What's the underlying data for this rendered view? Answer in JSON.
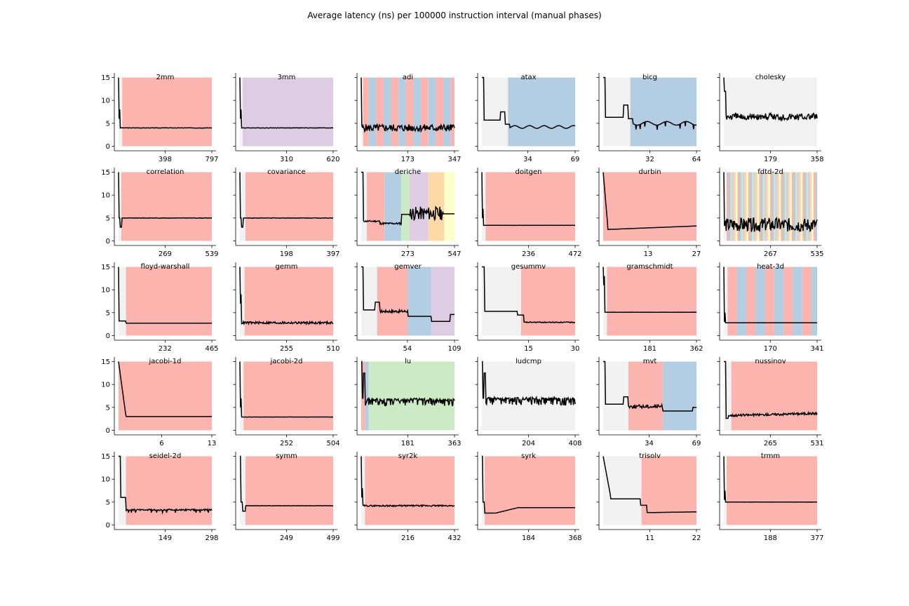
{
  "figure": {
    "title": "Average latency (ns) per 100000 instruction interval (manual phases)"
  },
  "colors": {
    "p0": "#f2f2f2",
    "p1": "#fbb4ae",
    "p2": "#b3cde3",
    "p3": "#ccebc5",
    "p4": "#decbe4",
    "p5": "#fed9a6",
    "p6": "#ffffcc",
    "line": "#000000"
  },
  "chart_data": [
    {
      "type": "line",
      "title": "2mm",
      "xticks": [
        "398",
        "797"
      ],
      "xmax": 797,
      "ylim": [
        0,
        15
      ],
      "yticks": [
        "0",
        "5",
        "10",
        "15"
      ],
      "phases": [
        [
          0,
          0.04,
          0
        ],
        [
          0.04,
          1,
          1
        ]
      ],
      "series": [
        {
          "shape": "spikeflat",
          "start": 15,
          "dip": 6,
          "flat": 4.0,
          "noise": 0.05
        }
      ]
    },
    {
      "type": "line",
      "title": "3mm",
      "xticks": [
        "310",
        "620"
      ],
      "xmax": 620,
      "ylim": [
        0,
        15
      ],
      "phases": [
        [
          0,
          0.03,
          0
        ],
        [
          0.03,
          1,
          4
        ]
      ],
      "series": [
        {
          "shape": "spikeflat",
          "start": 15,
          "dip": 6,
          "flat": 4.0,
          "noise": 0.05
        }
      ]
    },
    {
      "type": "line",
      "title": "adi",
      "xticks": [
        "173",
        "347"
      ],
      "xmax": 347,
      "ylim": [
        0,
        15
      ],
      "phases": [
        [
          0,
          0.02,
          0
        ],
        [
          0.02,
          0.08,
          1
        ],
        [
          0.08,
          0.16,
          2
        ],
        [
          0.16,
          0.24,
          1
        ],
        [
          0.24,
          0.32,
          2
        ],
        [
          0.32,
          0.4,
          1
        ],
        [
          0.4,
          0.48,
          2
        ],
        [
          0.48,
          0.56,
          1
        ],
        [
          0.56,
          0.64,
          2
        ],
        [
          0.64,
          0.72,
          1
        ],
        [
          0.72,
          0.8,
          2
        ],
        [
          0.8,
          0.88,
          1
        ],
        [
          0.88,
          0.96,
          2
        ],
        [
          0.96,
          1,
          1
        ]
      ],
      "series": [
        {
          "shape": "noisy",
          "start": 15,
          "flat": 4.0,
          "noise": 0.8
        }
      ]
    },
    {
      "type": "line",
      "title": "atax",
      "xticks": [
        "34",
        "69"
      ],
      "xmax": 69,
      "ylim": [
        0,
        15
      ],
      "phases": [
        [
          0,
          0.28,
          0
        ],
        [
          0.28,
          1,
          2
        ]
      ],
      "series": [
        {
          "shape": "atax",
          "start": 15,
          "flat": 4.0
        }
      ]
    },
    {
      "type": "line",
      "title": "bicg",
      "xticks": [
        "32",
        "64"
      ],
      "xmax": 64,
      "ylim": [
        0,
        15
      ],
      "phases": [
        [
          0,
          0.29,
          0
        ],
        [
          0.29,
          1,
          2
        ]
      ],
      "series": [
        {
          "shape": "bicg",
          "start": 15,
          "flat": 5.0
        }
      ]
    },
    {
      "type": "line",
      "title": "cholesky",
      "xticks": [
        "179",
        "358"
      ],
      "xmax": 358,
      "ylim": [
        0,
        15
      ],
      "phases": [
        [
          0,
          1,
          0
        ]
      ],
      "series": [
        {
          "shape": "hairy",
          "start": 15,
          "flat": 7.2,
          "noise": 1.5
        }
      ]
    },
    {
      "type": "line",
      "title": "correlation",
      "xticks": [
        "269",
        "539"
      ],
      "xmax": 539,
      "ylim": [
        0,
        15
      ],
      "phases": [
        [
          0,
          0.03,
          0
        ],
        [
          0.03,
          1,
          1
        ]
      ],
      "series": [
        {
          "shape": "dipflat",
          "start": 15,
          "dip": 3,
          "flat": 5.0
        }
      ]
    },
    {
      "type": "line",
      "title": "covariance",
      "xticks": [
        "198",
        "397"
      ],
      "xmax": 397,
      "ylim": [
        0,
        15
      ],
      "phases": [
        [
          0,
          0.06,
          0
        ],
        [
          0.06,
          1,
          1
        ]
      ],
      "series": [
        {
          "shape": "dipflat",
          "start": 15,
          "dip": 3,
          "flat": 5.0
        }
      ]
    },
    {
      "type": "line",
      "title": "deriche",
      "xticks": [
        "273",
        "547"
      ],
      "xmax": 547,
      "ylim": [
        0,
        15
      ],
      "phases": [
        [
          0,
          0.06,
          0
        ],
        [
          0.06,
          0.25,
          1
        ],
        [
          0.25,
          0.43,
          2
        ],
        [
          0.43,
          0.52,
          3
        ],
        [
          0.52,
          0.72,
          4
        ],
        [
          0.72,
          0.89,
          5
        ],
        [
          0.89,
          1,
          6
        ]
      ],
      "series": [
        {
          "shape": "deriche",
          "start": 15,
          "flat": 4.0
        }
      ]
    },
    {
      "type": "line",
      "title": "doitgen",
      "xticks": [
        "236",
        "472"
      ],
      "xmax": 472,
      "ylim": [
        0,
        15
      ],
      "phases": [
        [
          0,
          0.04,
          0
        ],
        [
          0.04,
          1,
          1
        ]
      ],
      "series": [
        {
          "shape": "spikeflat",
          "start": 15,
          "dip": 5,
          "flat": 3.4,
          "noise": 0.02
        }
      ]
    },
    {
      "type": "line",
      "title": "durbin",
      "xticks": [
        "13",
        "27"
      ],
      "xmax": 27,
      "ylim": [
        0,
        15
      ],
      "phases": [
        [
          0,
          1,
          1
        ]
      ],
      "series": [
        {
          "shape": "durbin",
          "start": 15,
          "flat": 2.5
        }
      ]
    },
    {
      "type": "line",
      "title": "fdtd-2d",
      "xticks": [
        "267",
        "535"
      ],
      "xmax": 535,
      "ylim": [
        0,
        15
      ],
      "phases": [
        [
          0,
          0.03,
          0
        ],
        [
          0.03,
          1,
          2
        ]
      ],
      "stripes": true,
      "series": [
        {
          "shape": "noisy",
          "start": 15,
          "flat": 3.5,
          "noise": 1.5
        }
      ]
    },
    {
      "type": "line",
      "title": "floyd-warshall",
      "xticks": [
        "232",
        "465"
      ],
      "xmax": 465,
      "ylim": [
        0,
        15
      ],
      "phases": [
        [
          0,
          0.08,
          0
        ],
        [
          0.08,
          1,
          1
        ]
      ],
      "series": [
        {
          "shape": "floyd",
          "start": 15,
          "flat": 2.7
        }
      ]
    },
    {
      "type": "line",
      "title": "gemm",
      "xticks": [
        "255",
        "510"
      ],
      "xmax": 510,
      "ylim": [
        0,
        15
      ],
      "phases": [
        [
          0,
          0.05,
          0
        ],
        [
          0.05,
          1,
          1
        ]
      ],
      "series": [
        {
          "shape": "spikeflat",
          "start": 15,
          "dip": 7,
          "flat": 2.8,
          "noise": 0.25
        }
      ]
    },
    {
      "type": "line",
      "title": "gemver",
      "xticks": [
        "54",
        "109"
      ],
      "xmax": 109,
      "ylim": [
        0,
        15
      ],
      "phases": [
        [
          0,
          0.17,
          0
        ],
        [
          0.17,
          0.5,
          1
        ],
        [
          0.5,
          0.75,
          2
        ],
        [
          0.75,
          1,
          4
        ]
      ],
      "series": [
        {
          "shape": "gemver",
          "start": 15,
          "flat": 5.5
        }
      ]
    },
    {
      "type": "line",
      "title": "gesummv",
      "xticks": [
        "15",
        "30"
      ],
      "xmax": 30,
      "ylim": [
        0,
        15
      ],
      "phases": [
        [
          0,
          0.42,
          0
        ],
        [
          0.42,
          1,
          1
        ]
      ],
      "series": [
        {
          "shape": "gesummv",
          "start": 15,
          "flat": 5.3
        }
      ]
    },
    {
      "type": "line",
      "title": "gramschmidt",
      "xticks": [
        "181",
        "362"
      ],
      "xmax": 362,
      "ylim": [
        0,
        15
      ],
      "phases": [
        [
          0,
          0.04,
          0
        ],
        [
          0.04,
          1,
          1
        ]
      ],
      "series": [
        {
          "shape": "spikeflat",
          "start": 15,
          "dip": 11,
          "flat": 5.1,
          "noise": 0.02
        }
      ]
    },
    {
      "type": "line",
      "title": "heat-3d",
      "xticks": [
        "170",
        "341"
      ],
      "xmax": 341,
      "ylim": [
        0,
        15
      ],
      "phases": [
        [
          0,
          0.04,
          0
        ],
        [
          0.04,
          0.14,
          1
        ],
        [
          0.14,
          0.24,
          2
        ],
        [
          0.24,
          0.34,
          1
        ],
        [
          0.34,
          0.44,
          2
        ],
        [
          0.44,
          0.54,
          1
        ],
        [
          0.54,
          0.64,
          2
        ],
        [
          0.64,
          0.74,
          1
        ],
        [
          0.74,
          0.84,
          2
        ],
        [
          0.84,
          0.94,
          1
        ],
        [
          0.94,
          1,
          2
        ]
      ],
      "series": [
        {
          "shape": "spikeflat",
          "start": 15,
          "dip": 3,
          "flat": 2.8,
          "noise": 0.02
        }
      ]
    },
    {
      "type": "line",
      "title": "jacobi-1d",
      "xticks": [
        "6",
        "13"
      ],
      "xmax": 13,
      "ylim": [
        0,
        15
      ],
      "phases": [
        [
          0,
          1,
          1
        ]
      ],
      "series": [
        {
          "shape": "jacobi1d",
          "start": 15,
          "flat": 3.0
        }
      ]
    },
    {
      "type": "line",
      "title": "jacobi-2d",
      "xticks": [
        "252",
        "504"
      ],
      "xmax": 504,
      "ylim": [
        0,
        15
      ],
      "phases": [
        [
          0,
          0.04,
          0
        ],
        [
          0.04,
          1,
          1
        ]
      ],
      "series": [
        {
          "shape": "spikeflat",
          "start": 15,
          "dip": 5,
          "flat": 2.9,
          "noise": 0.02
        }
      ]
    },
    {
      "type": "line",
      "title": "lu",
      "xticks": [
        "181",
        "363"
      ],
      "xmax": 363,
      "ylim": [
        0,
        15
      ],
      "phases": [
        [
          0,
          0.04,
          1
        ],
        [
          0.04,
          0.08,
          2
        ],
        [
          0.08,
          1,
          3
        ]
      ],
      "series": [
        {
          "shape": "lu",
          "start": 15,
          "flat": 7.0,
          "noise": 1.3
        }
      ]
    },
    {
      "type": "line",
      "title": "ludcmp",
      "xticks": [
        "204",
        "408"
      ],
      "xmax": 408,
      "ylim": [
        0,
        15
      ],
      "phases": [
        [
          0,
          1,
          0
        ]
      ],
      "series": [
        {
          "shape": "lu",
          "start": 15,
          "flat": 7.2,
          "noise": 1.3
        }
      ]
    },
    {
      "type": "line",
      "title": "mvt",
      "xticks": [
        "34",
        "69"
      ],
      "xmax": 69,
      "ylim": [
        0,
        15
      ],
      "phases": [
        [
          0,
          0.27,
          0
        ],
        [
          0.27,
          0.64,
          1
        ],
        [
          0.64,
          1,
          2
        ]
      ],
      "series": [
        {
          "shape": "mvt",
          "start": 15,
          "flat": 5.5
        }
      ]
    },
    {
      "type": "line",
      "title": "nussinov",
      "xticks": [
        "265",
        "531"
      ],
      "xmax": 531,
      "ylim": [
        0,
        15
      ],
      "phases": [
        [
          0,
          0.08,
          0
        ],
        [
          0.08,
          1,
          1
        ]
      ],
      "series": [
        {
          "shape": "nussinov",
          "start": 15,
          "flat": 3.6
        }
      ]
    },
    {
      "type": "line",
      "title": "seidel-2d",
      "xticks": [
        "149",
        "298"
      ],
      "xmax": 298,
      "ylim": [
        0,
        15
      ],
      "phases": [
        [
          0,
          0.08,
          0
        ],
        [
          0.08,
          1,
          1
        ]
      ],
      "series": [
        {
          "shape": "seidel",
          "start": 15,
          "flat": 3.3
        }
      ]
    },
    {
      "type": "line",
      "title": "symm",
      "xticks": [
        "249",
        "499"
      ],
      "xmax": 499,
      "ylim": [
        0,
        15
      ],
      "phases": [
        [
          0,
          0.06,
          0
        ],
        [
          0.06,
          1,
          1
        ]
      ],
      "series": [
        {
          "shape": "symm",
          "start": 15,
          "flat": 4.2
        }
      ]
    },
    {
      "type": "line",
      "title": "syr2k",
      "xticks": [
        "216",
        "432"
      ],
      "xmax": 432,
      "ylim": [
        0,
        15
      ],
      "phases": [
        [
          0,
          0.04,
          0
        ],
        [
          0.04,
          1,
          1
        ]
      ],
      "series": [
        {
          "shape": "spikeflat",
          "start": 15,
          "dip": 6,
          "flat": 4.2,
          "noise": 0.15
        }
      ]
    },
    {
      "type": "line",
      "title": "syrk",
      "xticks": [
        "184",
        "368"
      ],
      "xmax": 368,
      "ylim": [
        0,
        15
      ],
      "phases": [
        [
          0,
          0.03,
          0
        ],
        [
          0.03,
          1,
          1
        ]
      ],
      "series": [
        {
          "shape": "syrk",
          "start": 15,
          "flat": 3.8
        }
      ]
    },
    {
      "type": "line",
      "title": "trisolv",
      "xticks": [
        "11",
        "22"
      ],
      "xmax": 22,
      "ylim": [
        0,
        15
      ],
      "phases": [
        [
          0,
          0.41,
          0
        ],
        [
          0.41,
          1,
          1
        ]
      ],
      "series": [
        {
          "shape": "trisolv",
          "start": 15,
          "flat": 5.7
        }
      ]
    },
    {
      "type": "line",
      "title": "trmm",
      "xticks": [
        "188",
        "377"
      ],
      "xmax": 377,
      "ylim": [
        0,
        15
      ],
      "phases": [
        [
          0,
          0.03,
          0
        ],
        [
          0.03,
          1,
          1
        ]
      ],
      "series": [
        {
          "shape": "spikeflat",
          "start": 15,
          "dip": 5.5,
          "flat": 5.0,
          "noise": 0.01
        }
      ]
    }
  ]
}
